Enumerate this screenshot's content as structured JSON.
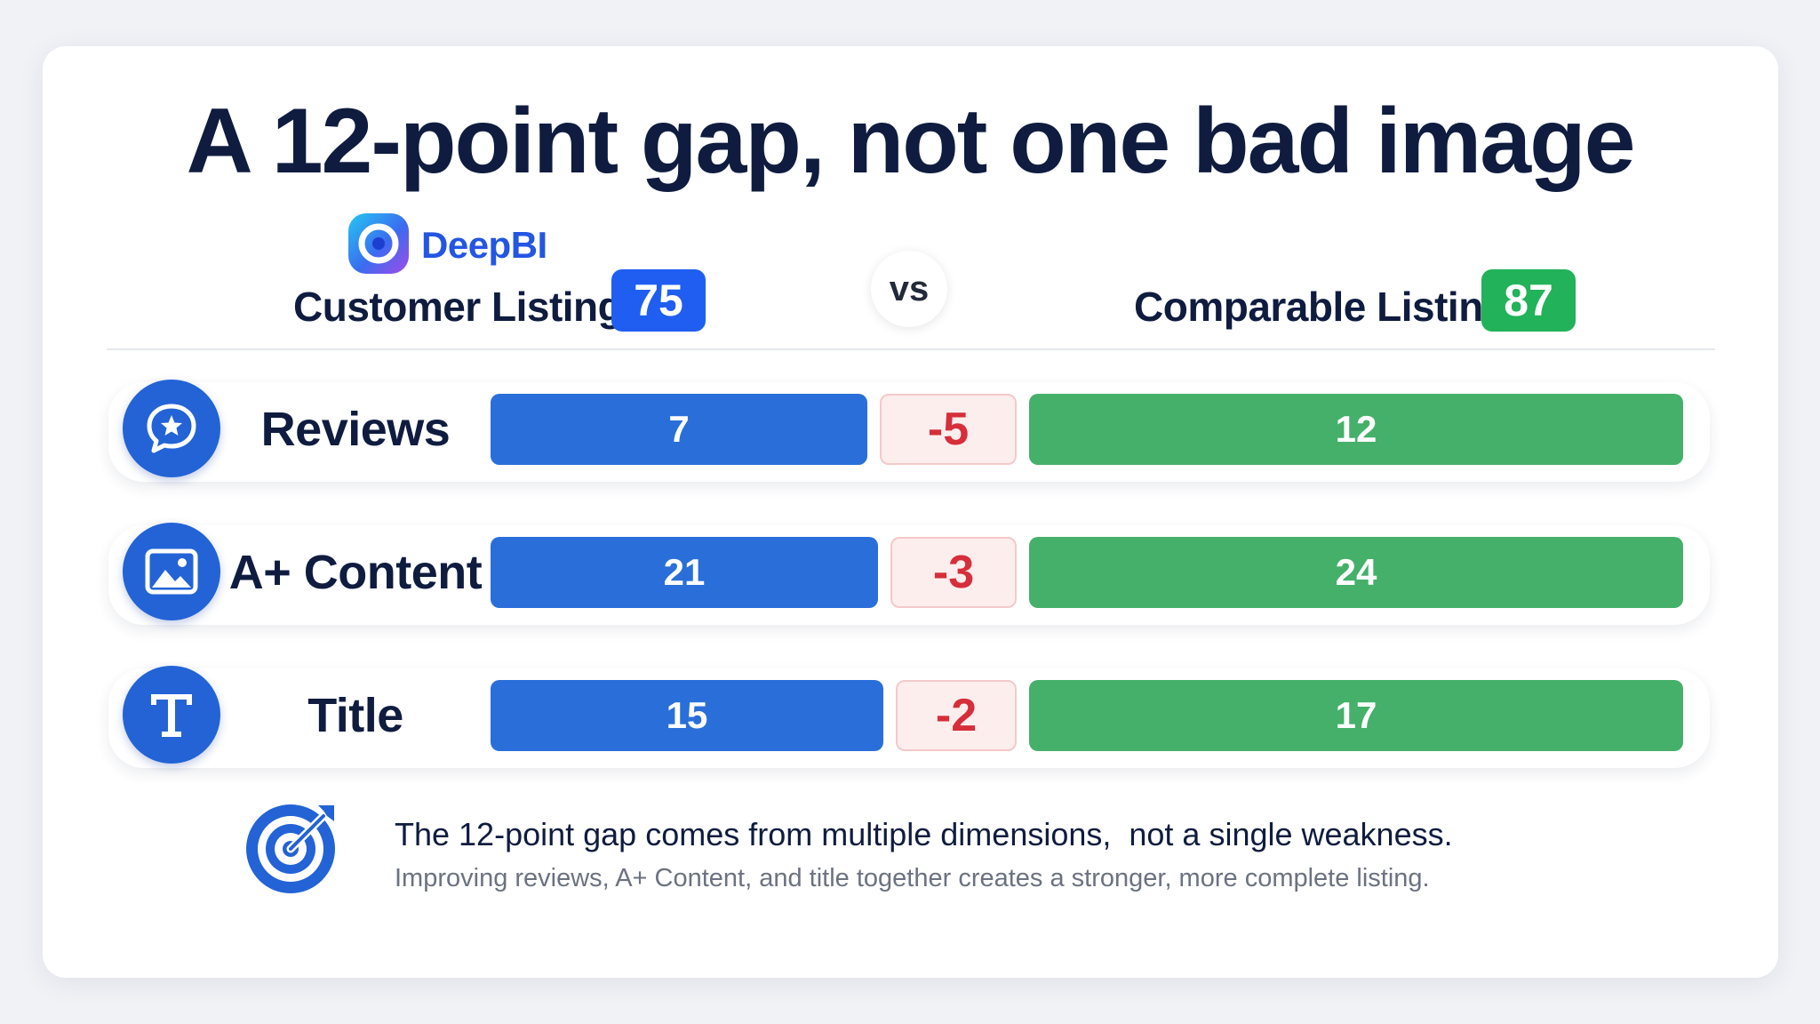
{
  "title": "A 12-point gap, not one bad image",
  "brand": {
    "name": "DeepBI"
  },
  "header": {
    "customer_label": "Customer Listing",
    "customer_score": "75",
    "vs": "vs",
    "comparable_label": "Comparable Listing",
    "comparable_score": "87"
  },
  "colors": {
    "customer": "#2a6fd9",
    "comparable": "#45b06a",
    "diff_text": "#d62e3a",
    "icon": "#2363d6",
    "title": "#0f1c3f"
  },
  "chart_data": {
    "type": "bar",
    "categories": [
      "Reviews",
      "A+ Content",
      "Title"
    ],
    "series": [
      {
        "name": "Customer Listing",
        "values": [
          7,
          21,
          15
        ]
      },
      {
        "name": "Comparable Listing",
        "values": [
          12,
          24,
          17
        ]
      }
    ],
    "differences": [
      -5,
      -3,
      -2
    ],
    "rows": [
      {
        "label": "Reviews",
        "icon": "chat-star-icon",
        "customer": "7",
        "diff": "-5",
        "comparable": "12"
      },
      {
        "label": "A+ Content",
        "icon": "image-icon",
        "customer": "21",
        "diff": "-3",
        "comparable": "24"
      },
      {
        "label": "Title",
        "icon": "title-t-icon",
        "customer": "15",
        "diff": "-2",
        "comparable": "17"
      }
    ]
  },
  "note": {
    "icon": "target-icon",
    "main": "The 12-point gap comes from multiple dimensions,  not a single weakness.",
    "sub": "Improving reviews, A+ Content, and title together creates a stronger, more complete listing."
  }
}
